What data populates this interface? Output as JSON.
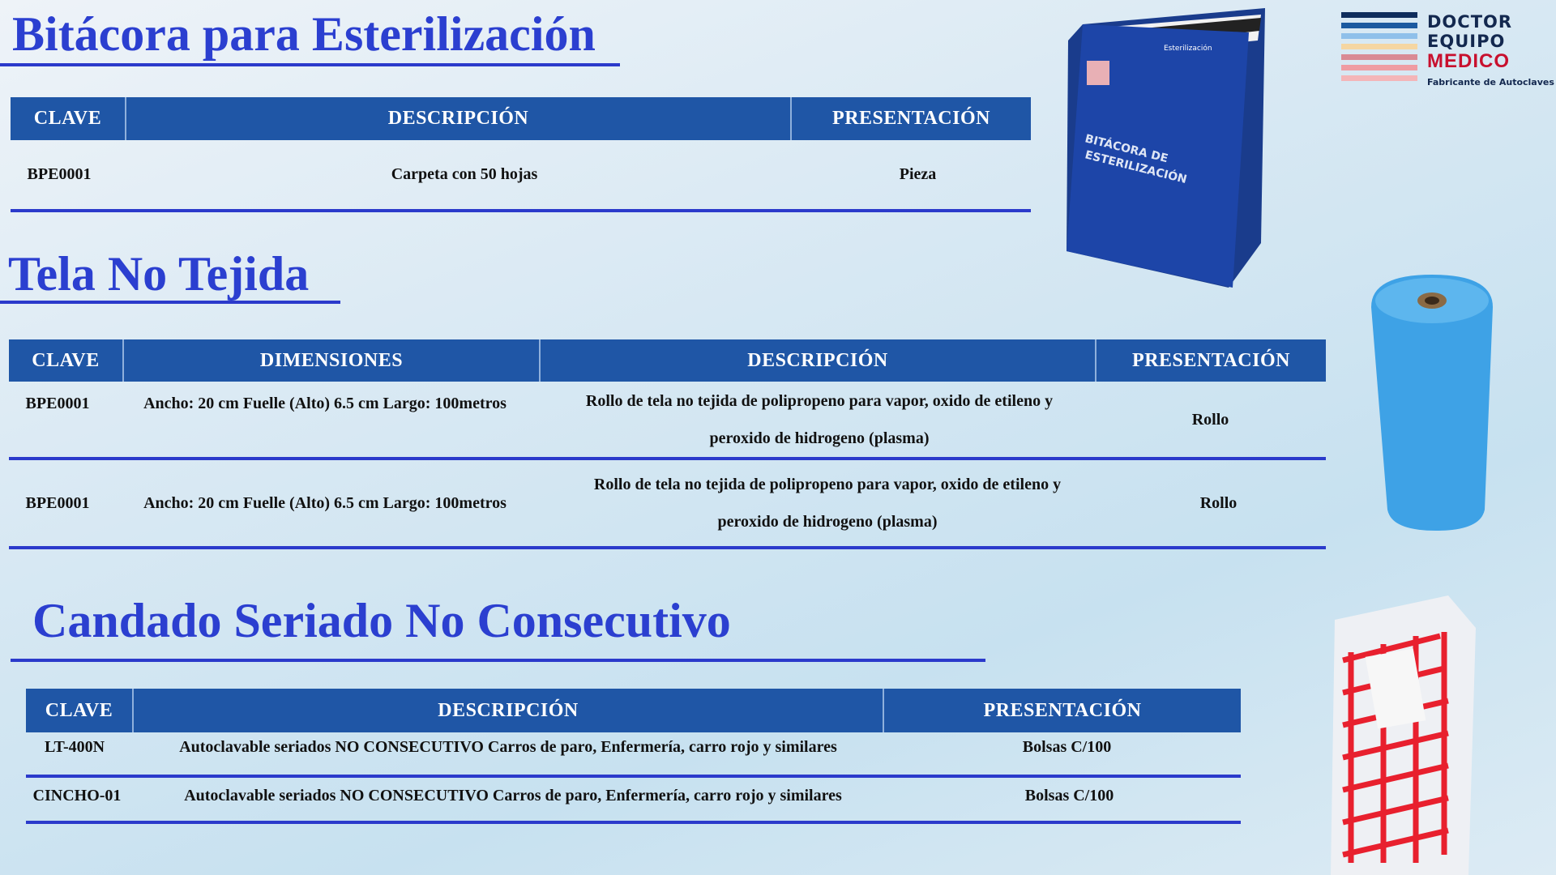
{
  "sections": [
    {
      "title": "Bitácora para Esterilización",
      "headers": [
        "CLAVE",
        "DESCRIPCIÓN",
        "PRESENTACIÓN"
      ],
      "rows": [
        [
          "BPE0001",
          "Carpeta con 50 hojas",
          "Pieza"
        ]
      ]
    },
    {
      "title": "Tela No Tejida",
      "headers": [
        "CLAVE",
        "DIMENSIONES",
        "DESCRIPCIÓN",
        "PRESENTACIÓN"
      ],
      "rows": [
        [
          "BPE0001",
          "Ancho: 20 cm Fuelle (Alto) 6.5 cm Largo: 100metros",
          "Rollo de tela no tejida de polipropeno para vapor, oxido de etileno y peroxido de hidrogeno (plasma)",
          "Rollo"
        ],
        [
          "BPE0001",
          "Ancho: 20 cm Fuelle (Alto) 6.5 cm Largo: 100metros",
          "Rollo de tela no tejida de polipropeno para vapor, oxido de etileno y peroxido de hidrogeno (plasma)",
          "Rollo"
        ]
      ]
    },
    {
      "title": "Candado Seriado No Consecutivo",
      "headers": [
        "CLAVE",
        "DESCRIPCIÓN",
        "PRESENTACIÓN"
      ],
      "rows": [
        [
          "LT-400N",
          "Autoclavable seriados NO CONSECUTIVO Carros de paro, Enfermería, carro rojo y similares",
          "Bolsas C/100"
        ],
        [
          "CINCHO-01",
          "Autoclavable seriados NO CONSECUTIVO Carros de paro, Enfermería, carro rojo y similares",
          "Bolsas C/100"
        ]
      ]
    }
  ],
  "logo": {
    "line1": "DOCTOR",
    "line2": "EQUIPO",
    "line3": "MEDICO",
    "tagline": "Fabricante de Autoclaves",
    "stripe_colors": [
      "#0f2d5c",
      "#1c5aa0",
      "#8fc0ea",
      "#f5d6a2",
      "#d98a94",
      "#ef9ca3",
      "#f4b5b8",
      "#f6cfd0"
    ]
  },
  "binder": {
    "cover_line1": "BITÁCORA DE",
    "cover_line2": "ESTERILIZACIÓN",
    "tab": "Esterilización"
  },
  "colors": {
    "header_bg": "#1f56a6",
    "title": "#2b3fd0",
    "rule": "#2b3acb"
  }
}
